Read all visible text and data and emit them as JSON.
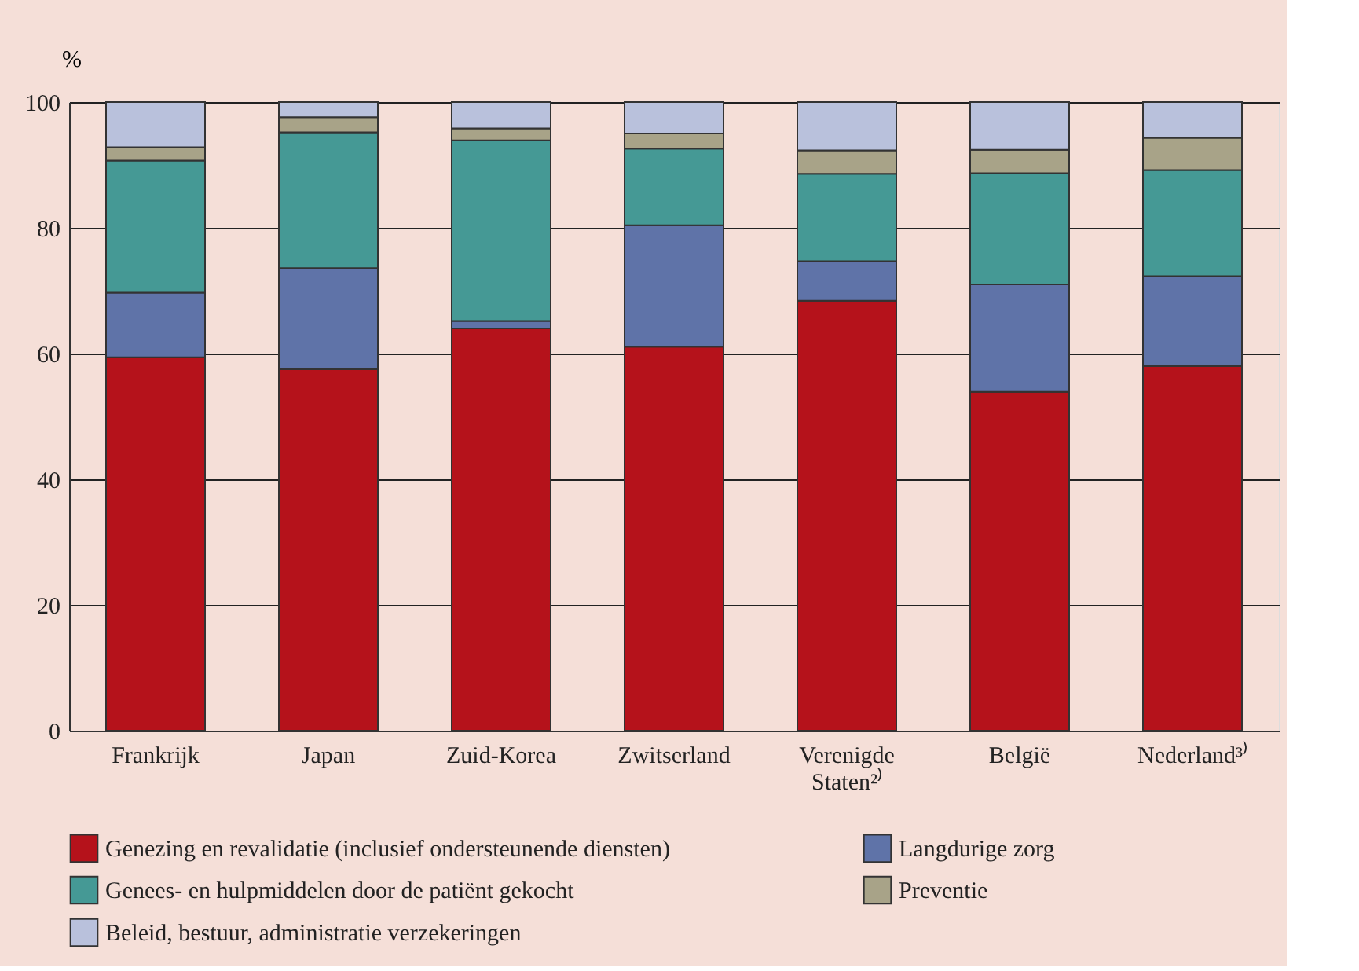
{
  "chart_data": {
    "type": "bar",
    "stacked": true,
    "ylabel": "%",
    "categories": [
      "Frankrijk",
      "Japan",
      "Zuid-Korea",
      "Zwitserland",
      "Verenigde\nStaten²⁾",
      "België",
      "Nederland³⁾"
    ],
    "series": [
      {
        "name": "Genezing en revalidatie (inclusief ondersteunende diensten)",
        "color": "#b5121b",
        "values": [
          59.4,
          57.5,
          64.0,
          61.1,
          68.4,
          53.9,
          58.0
        ]
      },
      {
        "name": "Langdurige zorg",
        "color": "#5f73a8",
        "values": [
          10.3,
          16.1,
          1.2,
          19.3,
          6.3,
          17.1,
          14.3
        ]
      },
      {
        "name": "Genees- en hulpmiddelen door de patiënt gekocht",
        "color": "#459995",
        "values": [
          21.0,
          21.6,
          28.7,
          12.2,
          13.9,
          17.7,
          16.9
        ]
      },
      {
        "name": "Preventie",
        "color": "#a8a388",
        "values": [
          2.1,
          2.4,
          1.9,
          2.4,
          3.7,
          3.7,
          5.1
        ]
      },
      {
        "name": "Beleid, bestuur, administratie verzekeringen",
        "color": "#b9c1dc",
        "values": [
          7.2,
          2.4,
          4.2,
          5.0,
          7.7,
          7.6,
          5.7
        ]
      }
    ],
    "ylim": [
      0,
      100
    ],
    "yticks": [
      0,
      20,
      40,
      60,
      80,
      100
    ],
    "grid": "y",
    "legend": "bottom"
  }
}
